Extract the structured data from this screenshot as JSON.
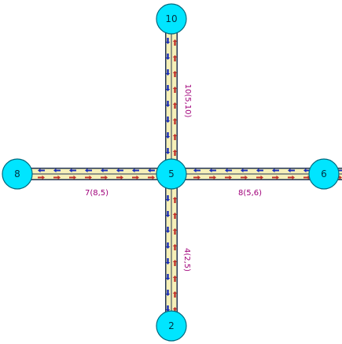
{
  "colors": {
    "road_fill": "#f6f0b8",
    "road_edge": "#223355",
    "node_fill": "#00e5ff",
    "node_stroke": "#006b80",
    "arrow_blue": "#1a2eb8",
    "arrow_red": "#c0332b",
    "label": "#a0007a"
  },
  "nodes": [
    {
      "id": "5",
      "label": "5"
    },
    {
      "id": "10",
      "label": "10"
    },
    {
      "id": "2",
      "label": "2"
    },
    {
      "id": "8",
      "label": "8"
    },
    {
      "id": "6",
      "label": "6"
    }
  ],
  "edges": [
    {
      "id": "10",
      "label": "10(5,10)",
      "from": "5",
      "to": "10"
    },
    {
      "id": "4",
      "label": "4(2,5)",
      "from": "2",
      "to": "5"
    },
    {
      "id": "7",
      "label": "7(8,5)",
      "from": "8",
      "to": "5"
    },
    {
      "id": "8",
      "label": "8(5,6)",
      "from": "5",
      "to": "6"
    }
  ]
}
